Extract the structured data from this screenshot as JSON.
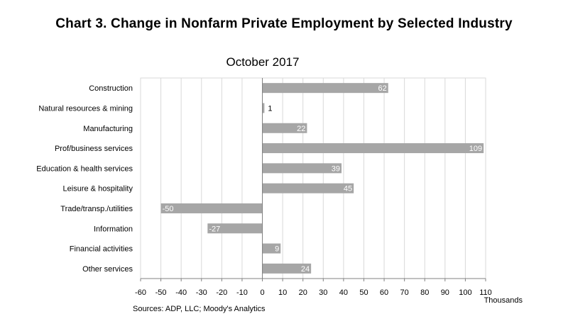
{
  "chart_data": {
    "type": "bar",
    "orientation": "horizontal",
    "title": "Chart 3. Change in Nonfarm Private Employment by Selected Industry",
    "subtitle": "October 2017",
    "categories": [
      "Construction",
      "Natural resources & mining",
      "Manufacturing",
      "Prof/business services",
      "Education & health services",
      "Leisure & hospitality",
      "Trade/transp./utilities",
      "Information",
      "Financial activities",
      "Other services"
    ],
    "values": [
      62,
      1,
      22,
      109,
      39,
      45,
      -50,
      -27,
      9,
      24
    ],
    "data_labels": [
      "62",
      "1",
      "22",
      "109",
      "39",
      "45",
      "-50",
      "-27",
      "9",
      "24"
    ],
    "x_ticks": [
      "-60",
      "-50",
      "-40",
      "-30",
      "-20",
      "-10",
      "0",
      "10",
      "20",
      "30",
      "40",
      "50",
      "60",
      "70",
      "80",
      "90",
      "100",
      "110"
    ],
    "xlim": [
      -60,
      110
    ],
    "xlabel": "Thousands",
    "ylabel": "",
    "grid": "vertical",
    "bar_color": "#a6a6a6",
    "grid_color": "#d9d9d9",
    "source": "Sources: ADP, LLC; Moody's Analytics"
  }
}
